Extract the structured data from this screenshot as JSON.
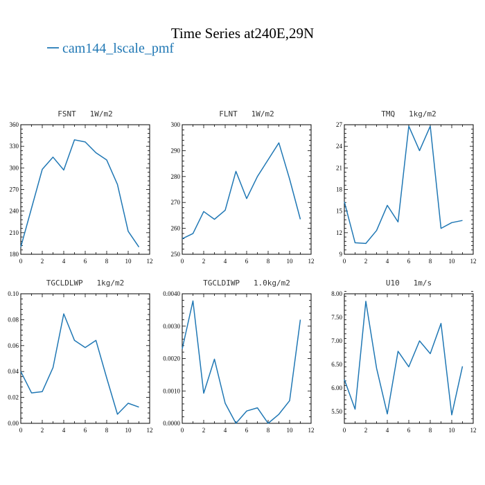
{
  "figure": {
    "title": "Time Series at240E,29N",
    "legend": {
      "label": "cam144_lscale_pmf",
      "color": "#1f77b4"
    }
  },
  "chart_data": [
    {
      "type": "line",
      "title": "FSNT   1W/m2",
      "x": [
        0,
        1,
        2,
        3,
        4,
        5,
        6,
        7,
        8,
        9,
        10,
        11
      ],
      "series": [
        {
          "name": "cam144_lscale_pmf",
          "color": "#1f77b4",
          "values": [
            190,
            244,
            298,
            315,
            297,
            339,
            336,
            321,
            311,
            277,
            212,
            190
          ]
        }
      ],
      "xlim": [
        0,
        12
      ],
      "ylim": [
        180,
        360
      ],
      "xticks": [
        0,
        2,
        4,
        6,
        8,
        10,
        12
      ],
      "yticks": [
        180,
        210,
        240,
        270,
        300,
        330,
        360
      ],
      "ytick_labels": [
        "180",
        "210",
        "240",
        "270",
        "300",
        "330",
        "360"
      ]
    },
    {
      "type": "line",
      "title": "FLNT   1W/m2",
      "x": [
        0,
        1,
        2,
        3,
        4,
        5,
        6,
        7,
        8,
        9,
        10,
        11
      ],
      "series": [
        {
          "name": "cam144_lscale_pmf",
          "color": "#1f77b4",
          "values": [
            256,
            258,
            266.5,
            263.5,
            267,
            282,
            271.5,
            280,
            286.5,
            293,
            279,
            263.5
          ]
        }
      ],
      "xlim": [
        0,
        12
      ],
      "ylim": [
        250,
        300
      ],
      "xticks": [
        0,
        2,
        4,
        6,
        8,
        10,
        12
      ],
      "yticks": [
        250,
        260,
        270,
        280,
        290,
        300
      ],
      "ytick_labels": [
        "250",
        "260",
        "270",
        "280",
        "290",
        "300"
      ]
    },
    {
      "type": "line",
      "title": "TMQ   1kg/m2",
      "x": [
        0,
        1,
        2,
        3,
        4,
        5,
        6,
        7,
        8,
        9,
        10,
        11
      ],
      "series": [
        {
          "name": "cam144_lscale_pmf",
          "color": "#1f77b4",
          "values": [
            16.3,
            10.6,
            10.5,
            12.3,
            15.8,
            13.5,
            26.8,
            23.4,
            26.8,
            12.6,
            13.4,
            13.7
          ]
        }
      ],
      "xlim": [
        0,
        12
      ],
      "ylim": [
        9,
        27
      ],
      "xticks": [
        0,
        2,
        4,
        6,
        8,
        10,
        12
      ],
      "yticks": [
        9,
        12,
        15,
        18,
        21,
        24,
        27
      ],
      "ytick_labels": [
        "9",
        "12",
        "15",
        "18",
        "21",
        "24",
        "27"
      ]
    },
    {
      "type": "line",
      "title": "TGCLDLWP   1kg/m2",
      "x": [
        0,
        1,
        2,
        3,
        4,
        5,
        6,
        7,
        8,
        9,
        10,
        11
      ],
      "series": [
        {
          "name": "cam144_lscale_pmf",
          "color": "#1f77b4",
          "values": [
            0.04,
            0.0235,
            0.0245,
            0.043,
            0.0845,
            0.064,
            0.0585,
            0.064,
            0.035,
            0.007,
            0.0155,
            0.0125
          ]
        }
      ],
      "xlim": [
        0,
        12
      ],
      "ylim": [
        0,
        0.1
      ],
      "xticks": [
        0,
        2,
        4,
        6,
        8,
        10,
        12
      ],
      "yticks": [
        0,
        0.02,
        0.04,
        0.06,
        0.08,
        0.1
      ],
      "ytick_labels": [
        "0.00",
        "0.02",
        "0.04",
        "0.06",
        "0.08",
        "0.10"
      ]
    },
    {
      "type": "line",
      "title": "TGCLDIWP   1.0kg/m2",
      "x": [
        0,
        1,
        2,
        3,
        4,
        5,
        6,
        7,
        8,
        9,
        10,
        11
      ],
      "series": [
        {
          "name": "cam144_lscale_pmf",
          "color": "#1f77b4",
          "values": [
            0.0023,
            0.00378,
            0.00093,
            0.00198,
            0.00062,
            0.0,
            0.00038,
            0.00048,
            0.0,
            0.00028,
            0.0007,
            0.0032
          ]
        }
      ],
      "xlim": [
        0,
        12
      ],
      "ylim": [
        0,
        0.004
      ],
      "xticks": [
        0,
        2,
        4,
        6,
        8,
        10,
        12
      ],
      "yticks": [
        0,
        0.001,
        0.002,
        0.003,
        0.004
      ],
      "ytick_labels": [
        "0.0000",
        "0.0010",
        "0.0020",
        "0.0030",
        "0.0040"
      ]
    },
    {
      "type": "line",
      "title": "U10   1m/s",
      "x": [
        0,
        1,
        2,
        3,
        4,
        5,
        6,
        7,
        8,
        9,
        10,
        11
      ],
      "series": [
        {
          "name": "cam144_lscale_pmf",
          "color": "#1f77b4",
          "values": [
            6.18,
            5.55,
            7.84,
            6.42,
            5.45,
            6.78,
            6.45,
            7.0,
            6.73,
            7.37,
            5.43,
            6.46
          ]
        }
      ],
      "xlim": [
        0,
        12
      ],
      "ylim": [
        5.25,
        8.0
      ],
      "xticks": [
        0,
        2,
        4,
        6,
        8,
        10,
        12
      ],
      "yticks": [
        5.5,
        6.0,
        6.5,
        7.0,
        7.5,
        8.0
      ],
      "ytick_labels": [
        "5.50",
        "6.00",
        "6.50",
        "7.00",
        "7.50",
        "8.00"
      ]
    }
  ]
}
